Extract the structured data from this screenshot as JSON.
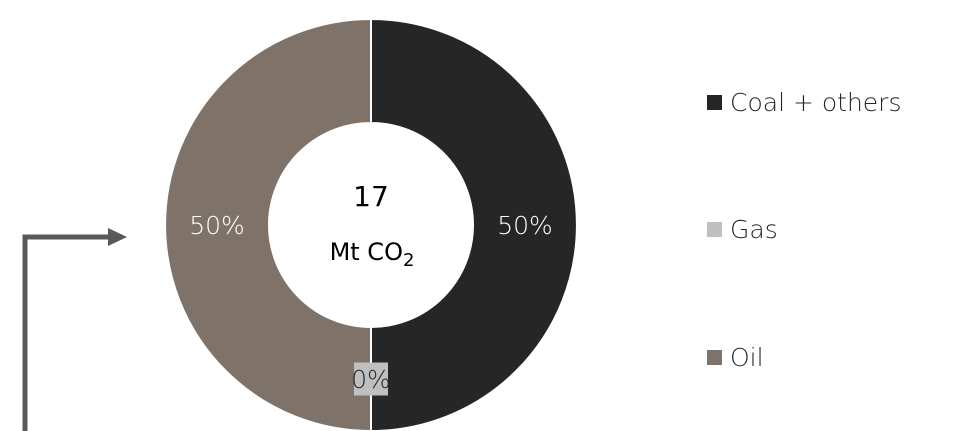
{
  "chart_data": {
    "type": "pie",
    "title": "",
    "center_value": "17",
    "center_unit": "Mt CO",
    "center_unit_subscript": "2",
    "slices": [
      {
        "name": "Coal + others",
        "value": 50,
        "label": "50%",
        "color": "#262626"
      },
      {
        "name": "Gas",
        "value": 0,
        "label": "0%",
        "color": "#bfbfbf"
      },
      {
        "name": "Oil",
        "value": 50,
        "label": "50%",
        "color": "#7f7369"
      }
    ],
    "legend_position": "right"
  },
  "arrow_color": "#595959"
}
